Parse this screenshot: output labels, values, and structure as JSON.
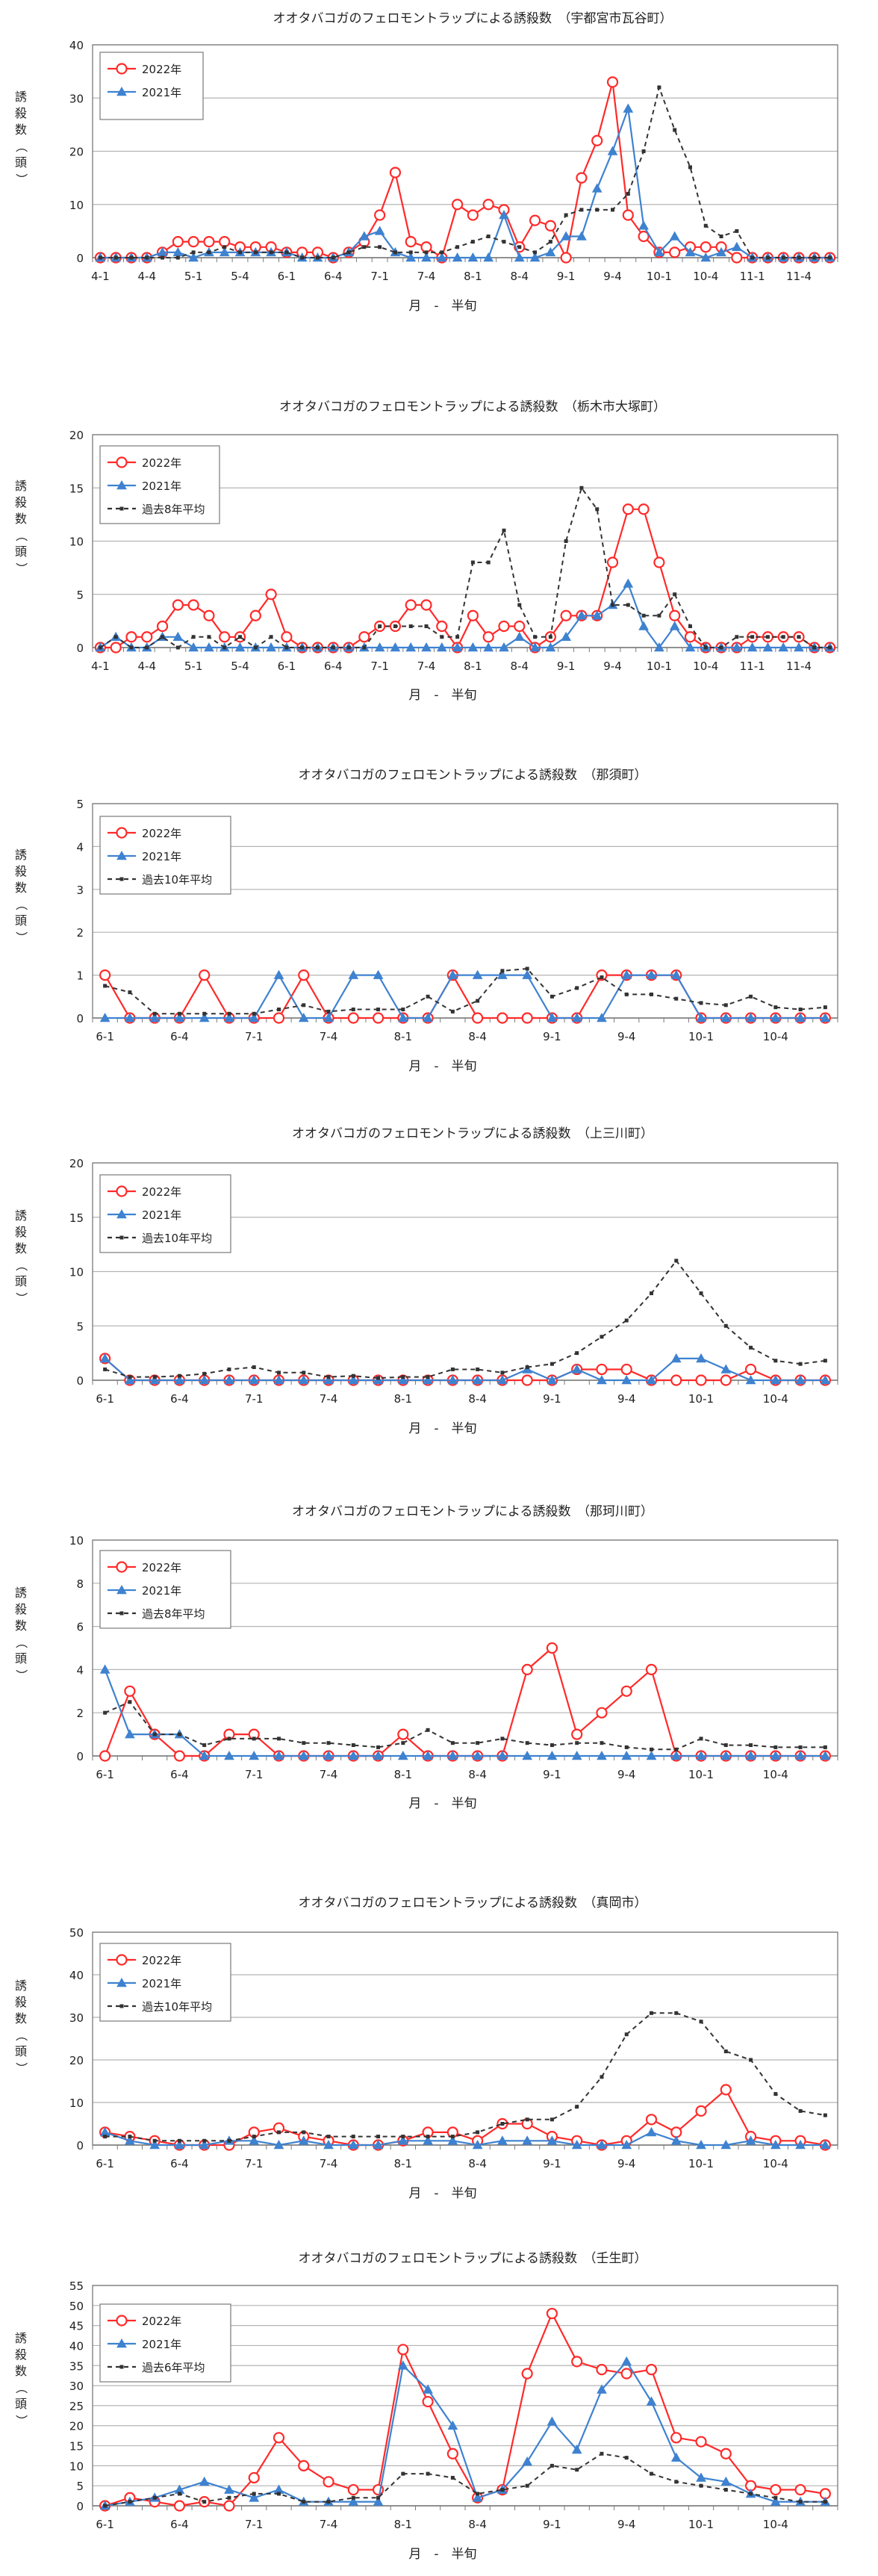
{
  "colors": {
    "y2022": "#ff2a2a",
    "y2021": "#3e82d0",
    "avg": "#333333",
    "grid": "#b4b4b4",
    "axis": "#7a7a7a"
  },
  "common": {
    "ylabel_chars": [
      "誘",
      "殺",
      "数",
      "（",
      "頭",
      "）"
    ],
    "xlabel": "月　-　半旬"
  },
  "chart_data": [
    {
      "type": "line",
      "title": "オオタバコガのフェロモントラップによる誘殺数　（宇都宮市瓦谷町）",
      "ylim": [
        0,
        40
      ],
      "yticks": [
        0,
        10,
        20,
        30,
        40
      ],
      "x_count": 48,
      "xtick_labels": [
        "4-1",
        "4-4",
        "5-1",
        "5-4",
        "6-1",
        "6-4",
        "7-1",
        "7-4",
        "8-1",
        "8-4",
        "9-1",
        "9-4",
        "10-1",
        "10-4",
        "11-1",
        "11-4"
      ],
      "xtick_step": 3,
      "legend": [
        "2022年",
        "2021年"
      ],
      "series": [
        {
          "name": "2022年",
          "key": "y2022",
          "values": [
            0,
            0,
            0,
            0,
            1,
            3,
            3,
            3,
            3,
            2,
            2,
            2,
            1,
            1,
            1,
            0,
            1,
            3,
            8,
            16,
            3,
            2,
            0,
            10,
            8,
            10,
            9,
            2,
            7,
            6,
            0,
            15,
            22,
            33,
            8,
            4,
            1,
            1,
            2,
            2,
            2,
            0,
            0,
            0,
            0,
            0,
            0,
            0
          ]
        },
        {
          "name": "2021年",
          "key": "y2021",
          "values": [
            0,
            0,
            0,
            0,
            1,
            1,
            0,
            1,
            1,
            1,
            1,
            1,
            1,
            0,
            0,
            0,
            1,
            4,
            5,
            1,
            0,
            0,
            0,
            0,
            0,
            0,
            8,
            0,
            0,
            1,
            4,
            4,
            13,
            20,
            28,
            6,
            1,
            4,
            1,
            0,
            1,
            2,
            0,
            0,
            0,
            0,
            0,
            0
          ]
        },
        {
          "name": "",
          "key": "avg",
          "values": [
            0,
            0,
            0,
            0,
            0,
            0,
            1,
            1,
            2,
            1,
            1,
            1,
            1,
            0,
            0,
            0,
            1,
            2,
            2,
            1,
            1,
            1,
            1,
            2,
            3,
            4,
            3,
            2,
            1,
            3,
            8,
            9,
            9,
            9,
            12,
            20,
            32,
            24,
            17,
            6,
            4,
            5,
            0,
            0,
            0,
            0,
            0,
            0
          ]
        }
      ]
    },
    {
      "type": "line",
      "title": "オオタバコガのフェロモントラップによる誘殺数　（栃木市大塚町）",
      "ylim": [
        0,
        20
      ],
      "yticks": [
        0,
        5,
        10,
        15,
        20
      ],
      "x_count": 48,
      "xtick_labels": [
        "4-1",
        "4-4",
        "5-1",
        "5-4",
        "6-1",
        "6-4",
        "7-1",
        "7-4",
        "8-1",
        "8-4",
        "9-1",
        "9-4",
        "10-1",
        "10-4",
        "11-1",
        "11-4"
      ],
      "xtick_step": 3,
      "legend": [
        "2022年",
        "2021年",
        "過去8年平均"
      ],
      "series": [
        {
          "name": "2022年",
          "key": "y2022",
          "values": [
            0,
            0,
            1,
            1,
            2,
            4,
            4,
            3,
            1,
            1,
            3,
            5,
            1,
            0,
            0,
            0,
            0,
            1,
            2,
            2,
            4,
            4,
            2,
            0,
            3,
            1,
            2,
            2,
            0,
            1,
            3,
            3,
            3,
            8,
            13,
            13,
            8,
            3,
            1,
            0,
            0,
            0,
            1,
            1,
            1,
            1,
            0,
            0
          ]
        },
        {
          "name": "2021年",
          "key": "y2021",
          "values": [
            0,
            1,
            0,
            0,
            1,
            1,
            0,
            0,
            0,
            0,
            0,
            0,
            0,
            0,
            0,
            0,
            0,
            0,
            0,
            0,
            0,
            0,
            0,
            0,
            0,
            0,
            0,
            1,
            0,
            0,
            1,
            3,
            3,
            4,
            6,
            2,
            0,
            2,
            0,
            0,
            0,
            0,
            0,
            0,
            0,
            0,
            0,
            0
          ]
        },
        {
          "name": "過去8年平均",
          "key": "avg",
          "values": [
            0,
            1,
            0,
            0,
            1,
            0,
            1,
            1,
            0,
            1,
            0,
            1,
            0,
            0,
            0,
            0,
            0,
            0,
            2,
            2,
            2,
            2,
            1,
            1,
            8,
            8,
            11,
            4,
            1,
            1,
            10,
            15,
            13,
            4,
            4,
            3,
            3,
            5,
            2,
            0,
            0,
            1,
            1,
            1,
            1,
            1,
            0,
            0
          ]
        }
      ]
    },
    {
      "type": "line",
      "title": "オオタバコガのフェロモントラップによる誘殺数　（那須町）",
      "ylim": [
        0,
        5
      ],
      "yticks": [
        0,
        1,
        2,
        3,
        4,
        5
      ],
      "x_count": 30,
      "xtick_labels": [
        "6-1",
        "6-4",
        "7-1",
        "7-4",
        "8-1",
        "8-4",
        "9-1",
        "9-4",
        "10-1",
        "10-4"
      ],
      "xtick_step": 3,
      "legend": [
        "2022年",
        "2021年",
        "過去10年平均"
      ],
      "series": [
        {
          "name": "2022年",
          "key": "y2022",
          "values": [
            1,
            0,
            0,
            0,
            1,
            0,
            0,
            0,
            1,
            0,
            0,
            0,
            0,
            0,
            1,
            0,
            0,
            0,
            0,
            0,
            1,
            1,
            1,
            1,
            0,
            0,
            0,
            0,
            0,
            0
          ]
        },
        {
          "name": "2021年",
          "key": "y2021",
          "values": [
            0,
            0,
            0,
            0,
            0,
            0,
            0,
            1,
            0,
            0,
            1,
            1,
            0,
            0,
            1,
            1,
            1,
            1,
            0,
            0,
            0,
            1,
            1,
            1,
            0,
            0,
            0,
            0,
            0,
            0
          ]
        },
        {
          "name": "過去10年平均",
          "key": "avg",
          "values": [
            0.75,
            0.6,
            0.1,
            0.1,
            0.1,
            0.1,
            0.1,
            0.2,
            0.3,
            0.15,
            0.2,
            0.2,
            0.2,
            0.5,
            0.15,
            0.4,
            1.1,
            1.15,
            0.5,
            0.7,
            0.95,
            0.55,
            0.55,
            0.45,
            0.35,
            0.3,
            0.5,
            0.25,
            0.2,
            0.25
          ]
        }
      ]
    },
    {
      "type": "line",
      "title": "オオタバコガのフェロモントラップによる誘殺数　（上三川町）",
      "ylim": [
        0,
        20
      ],
      "yticks": [
        0,
        5,
        10,
        15,
        20
      ],
      "x_count": 30,
      "xtick_labels": [
        "6-1",
        "6-4",
        "7-1",
        "7-4",
        "8-1",
        "8-4",
        "9-1",
        "9-4",
        "10-1",
        "10-4"
      ],
      "xtick_step": 3,
      "legend": [
        "2022年",
        "2021年",
        "過去10年平均"
      ],
      "series": [
        {
          "name": "2022年",
          "key": "y2022",
          "values": [
            2,
            0,
            0,
            0,
            0,
            0,
            0,
            0,
            0,
            0,
            0,
            0,
            0,
            0,
            0,
            0,
            0,
            0,
            0,
            1,
            1,
            1,
            0,
            0,
            0,
            0,
            1,
            0,
            0,
            0
          ]
        },
        {
          "name": "2021年",
          "key": "y2021",
          "values": [
            2,
            0,
            0,
            0,
            0,
            0,
            0,
            0,
            0,
            0,
            0,
            0,
            0,
            0,
            0,
            0,
            0,
            1,
            0,
            1,
            0,
            0,
            0,
            2,
            2,
            1,
            0,
            0,
            0,
            0
          ]
        },
        {
          "name": "過去10年平均",
          "key": "avg",
          "values": [
            1,
            0.3,
            0.3,
            0.4,
            0.6,
            1,
            1.2,
            0.7,
            0.7,
            0.3,
            0.4,
            0.2,
            0.3,
            0.3,
            1,
            1,
            0.7,
            1.2,
            1.5,
            2.5,
            4,
            5.5,
            8,
            11,
            8,
            5,
            3,
            1.8,
            1.5,
            1.8
          ]
        }
      ]
    },
    {
      "type": "line",
      "title": "オオタバコガのフェロモントラップによる誘殺数　（那珂川町）",
      "ylim": [
        0,
        10
      ],
      "yticks": [
        0,
        2,
        4,
        6,
        8,
        10
      ],
      "x_count": 30,
      "xtick_labels": [
        "6-1",
        "6-4",
        "7-1",
        "7-4",
        "8-1",
        "8-4",
        "9-1",
        "9-4",
        "10-1",
        "10-4"
      ],
      "xtick_step": 3,
      "legend": [
        "2022年",
        "2021年",
        "過去8年平均"
      ],
      "series": [
        {
          "name": "2022年",
          "key": "y2022",
          "values": [
            0,
            3,
            1,
            0,
            0,
            1,
            1,
            0,
            0,
            0,
            0,
            0,
            1,
            0,
            0,
            0,
            0,
            4,
            5,
            1,
            2,
            3,
            4,
            0,
            0,
            0,
            0,
            0,
            0,
            0
          ]
        },
        {
          "name": "2021年",
          "key": "y2021",
          "values": [
            4,
            1,
            1,
            1,
            0,
            0,
            0,
            0,
            0,
            0,
            0,
            0,
            0,
            0,
            0,
            0,
            0,
            0,
            0,
            0,
            0,
            0,
            0,
            0,
            0,
            0,
            0,
            0,
            0,
            0
          ]
        },
        {
          "name": "過去8年平均",
          "key": "avg",
          "values": [
            2,
            2.5,
            1,
            1,
            0.5,
            0.8,
            0.8,
            0.8,
            0.6,
            0.6,
            0.5,
            0.4,
            0.6,
            1.2,
            0.6,
            0.6,
            0.8,
            0.6,
            0.5,
            0.6,
            0.6,
            0.4,
            0.3,
            0.3,
            0.8,
            0.5,
            0.5,
            0.4,
            0.4,
            0.4
          ]
        }
      ]
    },
    {
      "type": "line",
      "title": "オオタバコガのフェロモントラップによる誘殺数　（真岡市）",
      "ylim": [
        0,
        50
      ],
      "yticks": [
        0,
        10,
        20,
        30,
        40,
        50
      ],
      "x_count": 30,
      "xtick_labels": [
        "6-1",
        "6-4",
        "7-1",
        "7-4",
        "8-1",
        "8-4",
        "9-1",
        "9-4",
        "10-1",
        "10-4"
      ],
      "xtick_step": 3,
      "legend": [
        "2022年",
        "2021年",
        "過去10年平均"
      ],
      "series": [
        {
          "name": "2022年",
          "key": "y2022",
          "values": [
            3,
            2,
            1,
            0,
            0,
            0,
            3,
            4,
            2,
            1,
            0,
            0,
            1,
            3,
            3,
            1,
            5,
            5,
            2,
            1,
            0,
            1,
            6,
            3,
            8,
            13,
            2,
            1,
            1,
            0
          ]
        },
        {
          "name": "2021年",
          "key": "y2021",
          "values": [
            3,
            1,
            0,
            0,
            0,
            1,
            1,
            0,
            1,
            0,
            0,
            0,
            1,
            1,
            1,
            0,
            1,
            1,
            1,
            0,
            0,
            0,
            3,
            1,
            0,
            0,
            1,
            0,
            0,
            0
          ]
        },
        {
          "name": "過去10年平均",
          "key": "avg",
          "values": [
            2,
            2,
            1,
            1,
            1,
            1,
            2,
            3,
            3,
            2,
            2,
            2,
            2,
            2,
            2,
            3,
            5,
            6,
            6,
            9,
            16,
            26,
            31,
            31,
            29,
            22,
            20,
            12,
            8,
            7
          ]
        }
      ]
    },
    {
      "type": "line",
      "title": "オオタバコガのフェロモントラップによる誘殺数　（壬生町）",
      "ylim": [
        0,
        55
      ],
      "yticks": [
        0,
        5,
        10,
        15,
        20,
        25,
        30,
        35,
        40,
        45,
        50,
        55
      ],
      "x_count": 30,
      "xtick_labels": [
        "6-1",
        "6-4",
        "7-1",
        "7-4",
        "8-1",
        "8-4",
        "9-1",
        "9-4",
        "10-1",
        "10-4"
      ],
      "xtick_step": 3,
      "legend": [
        "2022年",
        "2021年",
        "過去6年平均"
      ],
      "series": [
        {
          "name": "2022年",
          "key": "y2022",
          "values": [
            0,
            2,
            1,
            0,
            1,
            0,
            7,
            17,
            10,
            6,
            4,
            4,
            39,
            26,
            13,
            2,
            4,
            33,
            48,
            36,
            34,
            33,
            34,
            17,
            16,
            13,
            5,
            4,
            4,
            3
          ]
        },
        {
          "name": "2021年",
          "key": "y2021",
          "values": [
            0,
            1,
            2,
            4,
            6,
            4,
            2,
            4,
            1,
            1,
            1,
            1,
            35,
            29,
            20,
            2,
            4,
            11,
            21,
            14,
            29,
            36,
            26,
            12,
            7,
            6,
            3,
            1,
            1,
            1
          ]
        },
        {
          "name": "過去6年平均",
          "key": "avg",
          "values": [
            0,
            1,
            2,
            3,
            1,
            2,
            3,
            3,
            1,
            1,
            2,
            2,
            8,
            8,
            7,
            3,
            4,
            5,
            10,
            9,
            13,
            12,
            8,
            6,
            5,
            4,
            3,
            2,
            1,
            1
          ]
        }
      ]
    }
  ]
}
